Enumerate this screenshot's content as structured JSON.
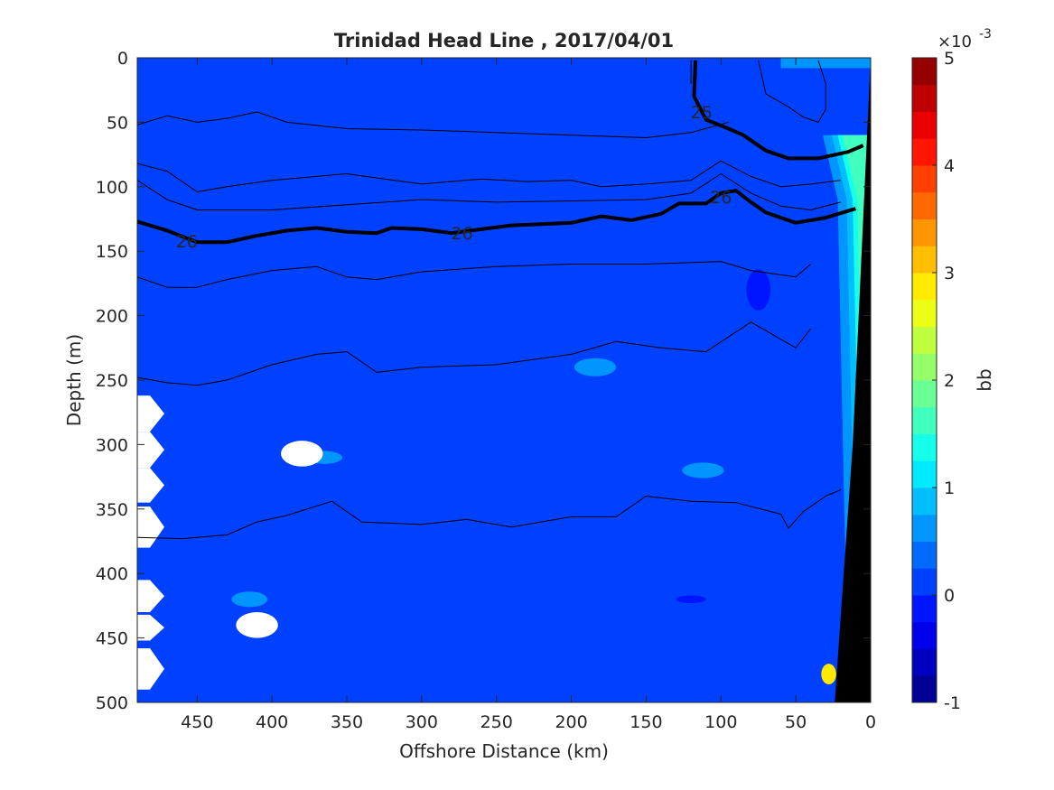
{
  "chart_data": {
    "type": "heatmap",
    "title": "Trinidad Head Line , 2017/04/01",
    "xlabel": "Offshore Distance (km)",
    "ylabel": "Depth (m)",
    "x_reversed": true,
    "y_reversed": true,
    "xlim": [
      0,
      490
    ],
    "ylim": [
      0,
      500
    ],
    "xticks": [
      450,
      400,
      350,
      300,
      250,
      200,
      150,
      100,
      50,
      0
    ],
    "yticks": [
      0,
      50,
      100,
      150,
      200,
      250,
      300,
      350,
      400,
      450,
      500
    ],
    "colorbar": {
      "label": "bb",
      "multiplier": "×10",
      "exponent": "-3",
      "range": [
        -1,
        5
      ],
      "ticks": [
        -1,
        0,
        1,
        2,
        3,
        4,
        5
      ],
      "levels": 24,
      "colormap": "jet"
    },
    "background_value": 0.2,
    "anomalies": [
      {
        "x": 380,
        "y": 307,
        "rx": 14,
        "ry": 10,
        "kind": "no-data"
      },
      {
        "x": 410,
        "y": 440,
        "rx": 14,
        "ry": 10,
        "kind": "no-data"
      },
      {
        "x": 184,
        "y": 240,
        "rx": 14,
        "ry": 7,
        "value": 0.6
      },
      {
        "x": 365,
        "y": 310,
        "rx": 12,
        "ry": 5,
        "value": 0.6
      },
      {
        "x": 112,
        "y": 320,
        "rx": 14,
        "ry": 6,
        "value": 0.5
      },
      {
        "x": 415,
        "y": 420,
        "rx": 12,
        "ry": 6,
        "value": 0.5
      },
      {
        "x": 120,
        "y": 420,
        "rx": 10,
        "ry": 3,
        "value": -0.2
      },
      {
        "x": 75,
        "y": 180,
        "rx": 8,
        "ry": 16,
        "value": -0.2
      },
      {
        "x": 28,
        "y": 478,
        "rx": 5,
        "ry": 8,
        "value": 2.8
      }
    ],
    "contour_labels": [
      {
        "text": "25",
        "x": 113,
        "y": 42
      },
      {
        "text": "26",
        "x": 457,
        "y": 142
      },
      {
        "text": "26",
        "x": 273,
        "y": 136
      },
      {
        "text": "26",
        "x": 100,
        "y": 108
      }
    ],
    "contours": [
      {
        "weight": "thin",
        "points": [
          [
            490,
            52
          ],
          [
            470,
            45
          ],
          [
            450,
            50
          ],
          [
            430,
            47
          ],
          [
            410,
            42
          ],
          [
            390,
            50
          ],
          [
            350,
            55
          ],
          [
            300,
            56
          ],
          [
            250,
            58
          ],
          [
            200,
            60
          ],
          [
            150,
            62
          ],
          [
            120,
            58
          ],
          [
            95,
            50
          ]
        ]
      },
      {
        "weight": "thin",
        "points": [
          [
            490,
            82
          ],
          [
            470,
            88
          ],
          [
            450,
            104
          ],
          [
            430,
            100
          ],
          [
            400,
            95
          ],
          [
            350,
            90
          ],
          [
            300,
            98
          ],
          [
            260,
            94
          ],
          [
            230,
            96
          ],
          [
            200,
            95
          ],
          [
            180,
            100
          ],
          [
            150,
            98
          ],
          [
            120,
            95
          ],
          [
            100,
            80
          ],
          [
            80,
            92
          ],
          [
            60,
            100
          ],
          [
            40,
            98
          ],
          [
            20,
            95
          ]
        ]
      },
      {
        "weight": "thin",
        "points": [
          [
            490,
            95
          ],
          [
            470,
            110
          ],
          [
            450,
            118
          ],
          [
            400,
            118
          ],
          [
            350,
            114
          ],
          [
            300,
            110
          ],
          [
            250,
            112
          ],
          [
            200,
            111
          ],
          [
            150,
            110
          ],
          [
            120,
            105
          ],
          [
            100,
            90
          ],
          [
            80,
            105
          ],
          [
            60,
            115
          ],
          [
            40,
            118
          ],
          [
            20,
            112
          ]
        ]
      },
      {
        "weight": "bold",
        "points": [
          [
            490,
            127
          ],
          [
            470,
            134
          ],
          [
            450,
            143
          ],
          [
            430,
            143
          ],
          [
            410,
            138
          ],
          [
            390,
            134
          ],
          [
            370,
            132
          ],
          [
            350,
            135
          ],
          [
            330,
            136
          ],
          [
            320,
            132
          ],
          [
            300,
            133
          ],
          [
            280,
            136
          ],
          [
            260,
            133
          ],
          [
            240,
            130
          ],
          [
            220,
            129
          ],
          [
            200,
            128
          ],
          [
            180,
            123
          ],
          [
            160,
            126
          ],
          [
            140,
            121
          ],
          [
            128,
            113
          ],
          [
            110,
            113
          ],
          [
            100,
            105
          ],
          [
            90,
            103
          ],
          [
            80,
            112
          ],
          [
            70,
            120
          ],
          [
            50,
            128
          ],
          [
            30,
            124
          ],
          [
            10,
            117
          ]
        ]
      },
      {
        "weight": "bold",
        "points": [
          [
            117,
            2
          ],
          [
            118,
            30
          ],
          [
            110,
            48
          ],
          [
            95,
            55
          ],
          [
            85,
            60
          ],
          [
            70,
            72
          ],
          [
            55,
            78
          ],
          [
            35,
            78
          ],
          [
            15,
            73
          ],
          [
            5,
            68
          ]
        ]
      },
      {
        "weight": "thin",
        "points": [
          [
            490,
            170
          ],
          [
            470,
            178
          ],
          [
            450,
            178
          ],
          [
            430,
            172
          ],
          [
            400,
            165
          ],
          [
            370,
            162
          ],
          [
            350,
            170
          ],
          [
            330,
            172
          ],
          [
            300,
            166
          ],
          [
            250,
            162
          ],
          [
            200,
            160
          ],
          [
            150,
            160
          ],
          [
            100,
            158
          ],
          [
            80,
            165
          ],
          [
            50,
            170
          ],
          [
            40,
            160
          ]
        ]
      },
      {
        "weight": "thin",
        "points": [
          [
            490,
            248
          ],
          [
            470,
            252
          ],
          [
            450,
            254
          ],
          [
            430,
            250
          ],
          [
            400,
            238
          ],
          [
            370,
            230
          ],
          [
            350,
            228
          ],
          [
            330,
            244
          ],
          [
            300,
            240
          ],
          [
            250,
            238
          ],
          [
            200,
            230
          ],
          [
            170,
            220
          ],
          [
            140,
            225
          ],
          [
            110,
            228
          ],
          [
            80,
            205
          ],
          [
            50,
            225
          ],
          [
            40,
            210
          ]
        ]
      },
      {
        "weight": "thin",
        "points": [
          [
            490,
            372
          ],
          [
            460,
            373
          ],
          [
            430,
            370
          ],
          [
            410,
            360
          ],
          [
            390,
            355
          ],
          [
            360,
            344
          ],
          [
            340,
            360
          ],
          [
            300,
            362
          ],
          [
            270,
            358
          ],
          [
            240,
            364
          ],
          [
            200,
            356
          ],
          [
            170,
            356
          ],
          [
            150,
            340
          ],
          [
            120,
            344
          ],
          [
            90,
            345
          ],
          [
            60,
            354
          ],
          [
            55,
            365
          ],
          [
            45,
            352
          ],
          [
            30,
            340
          ],
          [
            20,
            335
          ]
        ]
      },
      {
        "weight": "thin",
        "points": [
          [
            120,
            2
          ],
          [
            120,
            20
          ]
        ]
      },
      {
        "weight": "thin",
        "points": [
          [
            75,
            2
          ],
          [
            70,
            28
          ],
          [
            55,
            38
          ],
          [
            45,
            46
          ],
          [
            35,
            50
          ],
          [
            30,
            40
          ],
          [
            30,
            20
          ],
          [
            35,
            2
          ]
        ]
      }
    ]
  }
}
